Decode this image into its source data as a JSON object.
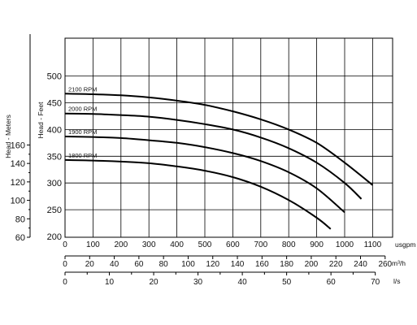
{
  "chart_data": {
    "type": "line",
    "xlabel": "usgpm",
    "ylabel_left": "Head - Meters",
    "ylabel_right": "Head - Feet",
    "xlim": [
      0,
      1150
    ],
    "ylim_feet": [
      200,
      550
    ],
    "meters_ticks": [
      60,
      80,
      100,
      120,
      140,
      160
    ],
    "feet_ticks": [
      200,
      250,
      300,
      350,
      400,
      450,
      500
    ],
    "x_ticks": [
      0,
      100,
      200,
      300,
      400,
      500,
      600,
      700,
      800,
      900,
      1000,
      1100
    ],
    "secondary_axes": [
      {
        "unit": "m³/h",
        "ticks": [
          0,
          20,
          40,
          60,
          80,
          100,
          120,
          140,
          160,
          180,
          200,
          220,
          240,
          260
        ]
      },
      {
        "unit": "l/s",
        "ticks": [
          0,
          10,
          20,
          30,
          40,
          50,
          60,
          70
        ]
      }
    ],
    "series": [
      {
        "name": "2100 RPM",
        "x": [
          0,
          100,
          200,
          300,
          400,
          500,
          600,
          700,
          800,
          900,
          1000,
          1100
        ],
        "y": [
          467,
          466,
          464,
          460,
          454,
          446,
          434,
          419,
          400,
          375,
          338,
          296
        ]
      },
      {
        "name": "2000 RPM",
        "x": [
          0,
          100,
          200,
          300,
          400,
          500,
          600,
          700,
          800,
          900,
          1000,
          1060
        ],
        "y": [
          430,
          429,
          427,
          424,
          418,
          410,
          400,
          385,
          365,
          338,
          300,
          270
        ]
      },
      {
        "name": "1900 RPM",
        "x": [
          0,
          100,
          200,
          300,
          400,
          500,
          600,
          700,
          800,
          900,
          1000
        ],
        "y": [
          387,
          386,
          384,
          380,
          375,
          367,
          356,
          341,
          320,
          290,
          245
        ]
      },
      {
        "name": "1800 RPM",
        "x": [
          0,
          100,
          200,
          300,
          400,
          500,
          600,
          700,
          800,
          900,
          950
        ],
        "y": [
          343,
          342,
          340,
          337,
          331,
          323,
          311,
          293,
          268,
          235,
          214
        ]
      }
    ],
    "grid": true,
    "legend": "curve labels at left"
  }
}
